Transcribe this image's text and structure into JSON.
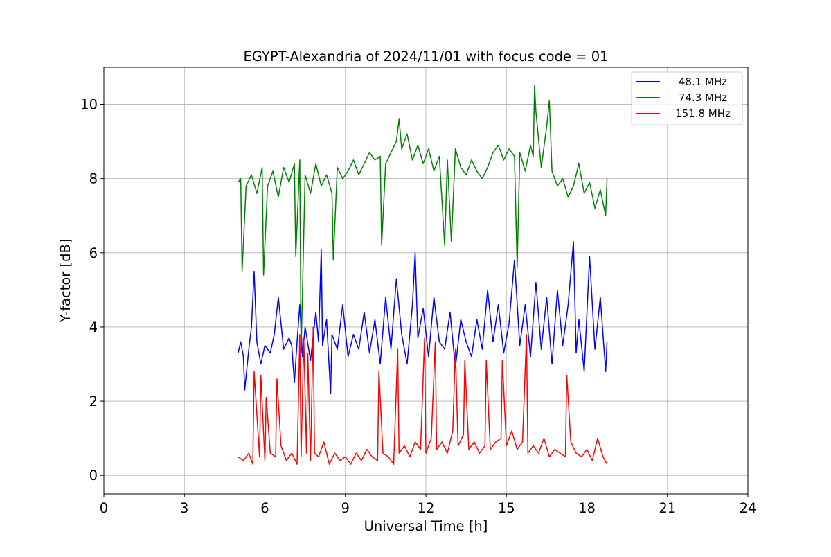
{
  "chart_data": {
    "type": "line",
    "title": "EGYPT-Alexandria of 2024/11/01 with focus code = 01",
    "xlabel": "Universal Time [h]",
    "ylabel": "Y-factor [dB]",
    "xlim": [
      0,
      24
    ],
    "ylim": [
      -0.5,
      11
    ],
    "xticks": [
      0,
      3,
      6,
      9,
      12,
      15,
      18,
      21,
      24
    ],
    "yticks": [
      0,
      2,
      4,
      6,
      8,
      10
    ],
    "grid": true,
    "legend_position": "top-right",
    "series": [
      {
        "name": "  48.1 MHz",
        "color": "#0000ff",
        "x": [
          5.0,
          5.1,
          5.2,
          5.25,
          5.4,
          5.5,
          5.6,
          5.7,
          5.85,
          6.0,
          6.2,
          6.35,
          6.5,
          6.7,
          6.9,
          7.0,
          7.1,
          7.2,
          7.3,
          7.4,
          7.5,
          7.7,
          7.9,
          8.0,
          8.1,
          8.15,
          8.3,
          8.45,
          8.5,
          8.7,
          8.9,
          9.1,
          9.3,
          9.5,
          9.7,
          9.9,
          10.1,
          10.3,
          10.5,
          10.7,
          10.9,
          11.1,
          11.3,
          11.5,
          11.6,
          11.7,
          11.9,
          12.1,
          12.3,
          12.5,
          12.7,
          12.9,
          13.1,
          13.3,
          13.5,
          13.7,
          13.9,
          14.1,
          14.3,
          14.5,
          14.7,
          14.9,
          15.1,
          15.3,
          15.5,
          15.7,
          15.9,
          16.1,
          16.3,
          16.5,
          16.7,
          16.9,
          17.1,
          17.3,
          17.5,
          17.6,
          17.7,
          17.9,
          18.1,
          18.3,
          18.5,
          18.7,
          18.75
        ],
        "y": [
          3.3,
          3.6,
          3.2,
          2.3,
          3.4,
          4.0,
          5.5,
          3.6,
          3.0,
          3.5,
          3.3,
          3.8,
          4.8,
          3.4,
          3.7,
          3.5,
          2.5,
          3.6,
          4.6,
          3.2,
          4.0,
          3.1,
          4.4,
          3.6,
          6.1,
          3.5,
          4.2,
          2.2,
          3.8,
          3.4,
          4.6,
          3.2,
          3.8,
          3.4,
          4.4,
          3.3,
          4.2,
          3.0,
          4.8,
          3.4,
          5.3,
          3.8,
          3.0,
          4.6,
          6.0,
          3.7,
          4.5,
          3.2,
          4.8,
          3.6,
          3.4,
          4.4,
          2.9,
          4.2,
          3.6,
          3.2,
          4.2,
          3.4,
          5.0,
          3.6,
          4.6,
          3.3,
          4.1,
          5.8,
          3.5,
          4.6,
          3.2,
          5.2,
          3.4,
          4.8,
          3.0,
          5.0,
          3.5,
          4.6,
          6.3,
          3.3,
          4.2,
          2.8,
          5.9,
          3.4,
          4.8,
          2.8,
          3.6
        ]
      },
      {
        "name": "  74.3 MHz",
        "color": "#008000",
        "x": [
          5.0,
          5.1,
          5.15,
          5.3,
          5.5,
          5.7,
          5.9,
          5.95,
          6.1,
          6.3,
          6.5,
          6.7,
          6.9,
          7.1,
          7.15,
          7.3,
          7.35,
          7.5,
          7.7,
          7.9,
          8.1,
          8.3,
          8.5,
          8.55,
          8.7,
          8.9,
          9.1,
          9.3,
          9.5,
          9.7,
          9.9,
          10.1,
          10.3,
          10.35,
          10.5,
          10.7,
          10.9,
          11.0,
          11.1,
          11.3,
          11.5,
          11.7,
          11.9,
          12.1,
          12.3,
          12.5,
          12.7,
          12.8,
          12.95,
          13.1,
          13.3,
          13.5,
          13.7,
          13.9,
          14.1,
          14.3,
          14.5,
          14.7,
          14.9,
          15.1,
          15.3,
          15.4,
          15.5,
          15.7,
          15.9,
          16.0,
          16.05,
          16.1,
          16.3,
          16.5,
          16.6,
          16.7,
          16.9,
          17.1,
          17.3,
          17.5,
          17.7,
          17.9,
          18.1,
          18.3,
          18.5,
          18.7,
          18.75
        ],
        "y": [
          7.9,
          8.0,
          5.5,
          7.8,
          8.1,
          7.6,
          8.3,
          5.4,
          7.8,
          8.2,
          7.5,
          8.3,
          7.9,
          8.4,
          5.9,
          8.5,
          3.3,
          8.1,
          7.6,
          8.4,
          7.8,
          8.1,
          7.6,
          5.8,
          8.3,
          8.0,
          8.2,
          8.5,
          8.1,
          8.4,
          8.7,
          8.5,
          8.6,
          6.2,
          8.4,
          8.7,
          9.0,
          9.6,
          8.8,
          9.2,
          8.5,
          8.9,
          8.4,
          8.8,
          8.2,
          8.6,
          6.2,
          8.5,
          6.3,
          8.8,
          8.3,
          8.1,
          8.5,
          8.2,
          8.0,
          8.3,
          8.7,
          8.9,
          8.5,
          8.8,
          8.6,
          5.6,
          8.7,
          8.2,
          8.9,
          8.6,
          10.5,
          9.8,
          8.3,
          9.4,
          10.1,
          8.2,
          7.8,
          8.0,
          7.5,
          7.8,
          8.4,
          7.6,
          7.9,
          7.2,
          7.7,
          7.0,
          8.0
        ]
      },
      {
        "name": "151.8 MHz",
        "color": "#ff0000",
        "x": [
          5.0,
          5.2,
          5.4,
          5.55,
          5.6,
          5.8,
          5.85,
          6.0,
          6.05,
          6.2,
          6.4,
          6.45,
          6.6,
          6.8,
          7.0,
          7.2,
          7.3,
          7.35,
          7.45,
          7.55,
          7.6,
          7.7,
          7.8,
          7.85,
          8.0,
          8.2,
          8.4,
          8.6,
          8.8,
          9.0,
          9.2,
          9.4,
          9.6,
          9.8,
          10.0,
          10.2,
          10.25,
          10.4,
          10.6,
          10.8,
          10.95,
          11.0,
          11.2,
          11.4,
          11.6,
          11.8,
          11.95,
          12.0,
          12.2,
          12.35,
          12.4,
          12.6,
          12.8,
          13.0,
          13.1,
          13.2,
          13.4,
          13.45,
          13.6,
          13.8,
          14.0,
          14.2,
          14.25,
          14.4,
          14.6,
          14.8,
          14.85,
          15.0,
          15.2,
          15.4,
          15.6,
          15.75,
          15.8,
          16.0,
          16.2,
          16.4,
          16.6,
          16.8,
          17.0,
          17.2,
          17.25,
          17.4,
          17.6,
          17.8,
          18.0,
          18.2,
          18.4,
          18.6,
          18.75
        ],
        "y": [
          0.5,
          0.4,
          0.6,
          0.3,
          2.8,
          0.5,
          2.7,
          0.4,
          2.1,
          0.6,
          0.5,
          2.6,
          0.8,
          0.4,
          0.6,
          0.3,
          3.8,
          0.5,
          3.7,
          0.6,
          3.3,
          0.4,
          4.0,
          0.6,
          0.5,
          0.9,
          0.3,
          0.6,
          0.4,
          0.5,
          0.3,
          0.6,
          0.4,
          0.7,
          0.5,
          0.4,
          2.8,
          0.6,
          0.5,
          0.3,
          3.4,
          0.6,
          0.8,
          0.5,
          0.9,
          0.7,
          3.7,
          0.6,
          1.0,
          3.6,
          0.7,
          0.9,
          0.6,
          1.2,
          3.4,
          0.8,
          1.1,
          3.1,
          0.7,
          0.9,
          0.6,
          0.8,
          3.1,
          0.7,
          0.9,
          1.0,
          3.1,
          0.8,
          1.2,
          0.7,
          0.9,
          3.8,
          0.6,
          0.8,
          0.6,
          1.0,
          0.5,
          0.7,
          0.6,
          0.5,
          2.7,
          0.9,
          0.6,
          0.5,
          0.7,
          0.4,
          1.0,
          0.5,
          0.3
        ]
      }
    ]
  }
}
